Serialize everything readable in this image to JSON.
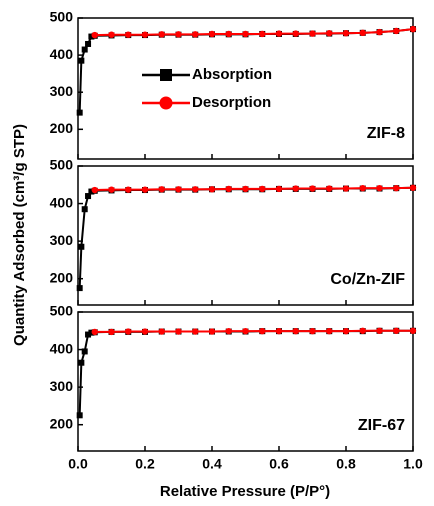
{
  "x_label": "Relative Pressure (P/P°)",
  "y_label": "Quantity Adsorbed (cm³/g STP)",
  "chart_data": [
    {
      "type": "line",
      "annotation": "ZIF-8",
      "x": [
        0.005,
        0.01,
        0.02,
        0.03,
        0.04,
        0.05,
        0.1,
        0.15,
        0.2,
        0.25,
        0.3,
        0.35,
        0.4,
        0.45,
        0.5,
        0.55,
        0.6,
        0.65,
        0.7,
        0.75,
        0.8,
        0.85,
        0.9,
        0.95,
        1.0
      ],
      "series": [
        {
          "name": "Absorption",
          "color": "#000000",
          "marker": "square",
          "values": [
            245,
            385,
            415,
            430,
            450,
            452,
            453,
            454,
            454,
            455,
            455,
            455,
            456,
            456,
            456,
            457,
            457,
            457,
            458,
            458,
            459,
            460,
            462,
            465,
            470
          ]
        },
        {
          "name": "Desorption",
          "color": "#ff0000",
          "marker": "circle",
          "values": [
            null,
            null,
            null,
            null,
            null,
            454,
            455,
            455,
            455,
            456,
            456,
            456,
            457,
            457,
            457,
            457,
            458,
            458,
            458,
            459,
            459,
            460,
            462,
            465,
            470
          ]
        }
      ],
      "xlim": [
        0,
        1
      ],
      "ylim": [
        120,
        500
      ],
      "yticks": [
        200,
        300,
        400,
        500
      ]
    },
    {
      "type": "line",
      "annotation": "Co/Zn-ZIF",
      "x": [
        0.005,
        0.01,
        0.02,
        0.03,
        0.04,
        0.05,
        0.1,
        0.15,
        0.2,
        0.25,
        0.3,
        0.35,
        0.4,
        0.45,
        0.5,
        0.55,
        0.6,
        0.65,
        0.7,
        0.75,
        0.8,
        0.85,
        0.9,
        0.95,
        1.0
      ],
      "series": [
        {
          "color": "#000000",
          "marker": "square",
          "values": [
            175,
            285,
            385,
            420,
            432,
            434,
            435,
            436,
            436,
            437,
            437,
            437,
            438,
            438,
            438,
            438,
            439,
            439,
            439,
            439,
            440,
            440,
            440,
            441,
            442
          ]
        },
        {
          "color": "#ff0000",
          "marker": "circle",
          "values": [
            null,
            null,
            null,
            null,
            null,
            436,
            437,
            437,
            437,
            438,
            438,
            438,
            438,
            439,
            439,
            439,
            439,
            440,
            440,
            440,
            440,
            441,
            441,
            441,
            442
          ]
        }
      ],
      "xlim": [
        0,
        1
      ],
      "ylim": [
        130,
        500
      ],
      "yticks": [
        200,
        300,
        400,
        500
      ]
    },
    {
      "type": "line",
      "annotation": "ZIF-67",
      "x": [
        0.005,
        0.01,
        0.02,
        0.03,
        0.04,
        0.05,
        0.1,
        0.15,
        0.2,
        0.25,
        0.3,
        0.35,
        0.4,
        0.45,
        0.5,
        0.55,
        0.6,
        0.65,
        0.7,
        0.75,
        0.8,
        0.85,
        0.9,
        0.95,
        1.0
      ],
      "series": [
        {
          "color": "#000000",
          "marker": "square",
          "values": [
            225,
            365,
            395,
            440,
            445,
            446,
            447,
            447,
            447,
            448,
            448,
            448,
            448,
            448,
            448,
            449,
            449,
            449,
            449,
            449,
            449,
            449,
            450,
            450,
            450
          ]
        },
        {
          "color": "#ff0000",
          "marker": "circle",
          "values": [
            null,
            null,
            null,
            null,
            null,
            447,
            447,
            448,
            448,
            448,
            448,
            448,
            448,
            449,
            449,
            449,
            449,
            449,
            449,
            449,
            449,
            450,
            450,
            450,
            450
          ]
        }
      ],
      "xlim": [
        0,
        1
      ],
      "ylim": [
        130,
        500
      ],
      "yticks": [
        200,
        300,
        400,
        500
      ],
      "xticks": [
        {
          "value": 0,
          "label": "0.0"
        },
        0.2,
        0.4,
        0.6,
        0.8,
        {
          "value": 1,
          "label": "1.0"
        }
      ]
    }
  ]
}
